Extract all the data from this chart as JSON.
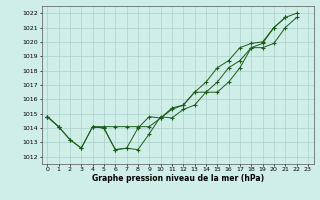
{
  "x": [
    0,
    1,
    2,
    3,
    4,
    5,
    6,
    7,
    8,
    9,
    10,
    11,
    12,
    13,
    14,
    15,
    16,
    17,
    18,
    19,
    20,
    21,
    22,
    23
  ],
  "line1": [
    1014.8,
    1014.1,
    1013.2,
    1012.6,
    1014.1,
    1014.0,
    1012.5,
    1012.6,
    1012.5,
    1013.6,
    1014.8,
    1014.7,
    1015.3,
    1015.6,
    1016.5,
    1016.5,
    1017.2,
    1018.2,
    1019.6,
    1019.6,
    1019.9,
    1021.0,
    1021.7,
    null
  ],
  "line2": [
    1014.8,
    1014.1,
    1013.2,
    1012.6,
    1014.1,
    1014.0,
    1012.5,
    1012.6,
    1014.0,
    1014.8,
    1014.7,
    1015.3,
    1015.6,
    1016.5,
    1016.5,
    1017.2,
    1018.2,
    1018.7,
    1019.6,
    1019.9,
    1021.0,
    1021.7,
    null,
    null
  ],
  "line3": [
    1014.8,
    1014.1,
    null,
    null,
    1014.1,
    1014.1,
    1014.1,
    1014.1,
    1014.1,
    1014.1,
    1014.7,
    1015.4,
    1015.6,
    1016.5,
    1017.2,
    1018.2,
    1018.7,
    1019.6,
    1019.9,
    1020.0,
    1021.0,
    1021.7,
    1022.0,
    null
  ],
  "ylim": [
    1011.5,
    1022.5
  ],
  "xlim": [
    -0.5,
    23.5
  ],
  "yticks": [
    1012,
    1013,
    1014,
    1015,
    1016,
    1017,
    1018,
    1019,
    1020,
    1021,
    1022
  ],
  "xticks": [
    0,
    1,
    2,
    3,
    4,
    5,
    6,
    7,
    8,
    9,
    10,
    11,
    12,
    13,
    14,
    15,
    16,
    17,
    18,
    19,
    20,
    21,
    22,
    23
  ],
  "xtick_labels": [
    "0",
    "1",
    "2",
    "3",
    "4",
    "5",
    "6",
    "7",
    "8",
    "9",
    "10",
    "11",
    "12",
    "13",
    "14",
    "15",
    "16",
    "17",
    "18",
    "19",
    "20",
    "21",
    "22",
    "23"
  ],
  "xlabel": "Graphe pression niveau de la mer (hPa)",
  "line_color": "#1a5c1a",
  "bg_color": "#d0eee8",
  "grid_color": "#aacfca",
  "marker": "+"
}
